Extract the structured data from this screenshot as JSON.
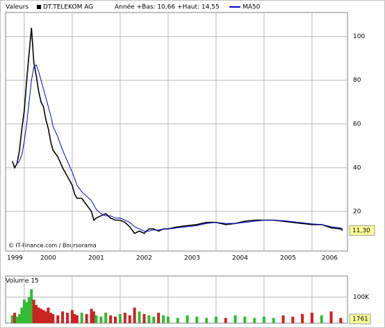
{
  "header": {
    "label": "Valeurs",
    "credit": "© IT-Finance.com / Boursorama"
  },
  "chart_data": [
    {
      "type": "line",
      "annotation": "Année +Bas: 10,66 +Haut: 14,55",
      "x": [
        1999.75,
        1999.8,
        1999.85,
        1999.9,
        1999.95,
        2000.0,
        2000.05,
        2000.1,
        2000.15,
        2000.2,
        2000.25,
        2000.3,
        2000.35,
        2000.4,
        2000.45,
        2000.5,
        2000.55,
        2000.6,
        2000.7,
        2000.8,
        2000.9,
        2001.0,
        2001.05,
        2001.1,
        2001.2,
        2001.3,
        2001.4,
        2001.45,
        2001.5,
        2001.6,
        2001.7,
        2001.8,
        2001.9,
        2002.0,
        2002.1,
        2002.2,
        2002.3,
        2002.4,
        2002.5,
        2002.6,
        2002.7,
        2002.8,
        2002.9,
        2003.0,
        2003.2,
        2003.4,
        2003.6,
        2003.8,
        2004.0,
        2004.2,
        2004.4,
        2004.6,
        2004.8,
        2005.0,
        2005.2,
        2005.4,
        2005.6,
        2005.8,
        2006.0,
        2006.2,
        2006.4,
        2006.6,
        2006.64
      ],
      "series": [
        {
          "name": "DT.TELEKOM AG",
          "color": "#000000",
          "values": [
            43,
            40,
            42,
            48,
            58,
            66,
            80,
            92,
            104,
            88,
            82,
            75,
            70,
            68,
            62,
            58,
            52,
            48,
            45,
            40,
            36,
            32,
            28,
            26,
            26,
            23,
            20,
            16,
            17,
            18,
            19,
            17,
            16,
            16,
            15,
            13,
            10,
            11,
            10,
            12,
            12,
            11,
            12,
            12,
            13,
            13.5,
            14,
            15,
            15,
            14,
            14.5,
            15.5,
            16,
            16,
            16,
            15.5,
            15,
            14.5,
            14,
            14,
            12.5,
            12,
            11.3
          ]
        },
        {
          "name": "MA50",
          "color": "#0000cc",
          "values": [
            null,
            null,
            42,
            43,
            46,
            52,
            60,
            70,
            80,
            86,
            87,
            84,
            80,
            76,
            72,
            68,
            64,
            59,
            54,
            48,
            43,
            38,
            35,
            32,
            29,
            27,
            25,
            23,
            21,
            19,
            18,
            18,
            17,
            17,
            16,
            15,
            13,
            12,
            11,
            11,
            11.5,
            11.5,
            12,
            12,
            12.5,
            13,
            13.5,
            14.5,
            15,
            14.5,
            14.5,
            15,
            15.5,
            16,
            16,
            15.8,
            15.3,
            14.8,
            14.3,
            14,
            13,
            12.5,
            12
          ]
        }
      ],
      "last_value_label": "11,30",
      "xlim": [
        1999.61,
        2006.74
      ],
      "xticks": [
        1999,
        2000,
        2001,
        2002,
        2003,
        2004,
        2005,
        2006
      ],
      "ylim": [
        1.9,
        111
      ],
      "yticks": [
        20,
        40,
        60,
        80,
        100
      ],
      "grid": true
    },
    {
      "type": "bar",
      "title": "Volume 15",
      "x": [
        1999.75,
        1999.8,
        1999.85,
        1999.9,
        1999.95,
        2000.0,
        2000.05,
        2000.1,
        2000.15,
        2000.2,
        2000.25,
        2000.3,
        2000.35,
        2000.4,
        2000.45,
        2000.5,
        2000.55,
        2000.6,
        2000.7,
        2000.8,
        2000.9,
        2001.0,
        2001.05,
        2001.1,
        2001.2,
        2001.3,
        2001.4,
        2001.45,
        2001.5,
        2001.6,
        2001.7,
        2001.8,
        2001.9,
        2002.0,
        2002.1,
        2002.2,
        2002.3,
        2002.4,
        2002.5,
        2002.6,
        2002.7,
        2002.8,
        2002.9,
        2003.0,
        2003.2,
        2003.4,
        2003.6,
        2003.8,
        2004.0,
        2004.2,
        2004.4,
        2004.6,
        2004.8,
        2005.0,
        2005.2,
        2005.4,
        2005.6,
        2005.8,
        2006.0,
        2006.2,
        2006.4,
        2006.6,
        2006.64
      ],
      "values": [
        30000,
        40000,
        25000,
        35000,
        60000,
        90000,
        80000,
        100000,
        130000,
        90000,
        70000,
        60000,
        55000,
        50000,
        45000,
        60000,
        40000,
        35000,
        30000,
        45000,
        40000,
        50000,
        35000,
        30000,
        40000,
        35000,
        55000,
        45000,
        30000,
        25000,
        40000,
        30000,
        25000,
        35000,
        40000,
        30000,
        60000,
        45000,
        35000,
        30000,
        25000,
        40000,
        30000,
        25000,
        20000,
        30000,
        25000,
        20000,
        25000,
        20000,
        30000,
        25000,
        20000,
        25000,
        20000,
        30000,
        25000,
        35000,
        40000,
        30000,
        45000,
        20000,
        1761
      ],
      "up_color": "#33bb33",
      "down_color": "#cc2222",
      "xlim": [
        1999.61,
        2006.74
      ],
      "xticks": [
        1999,
        2000,
        2001,
        2002,
        2003,
        2004,
        2005,
        2006
      ],
      "ylim": [
        0,
        181000
      ],
      "yticks": [
        {
          "value": 100000,
          "label": "100K"
        }
      ],
      "grid": true
    }
  ]
}
